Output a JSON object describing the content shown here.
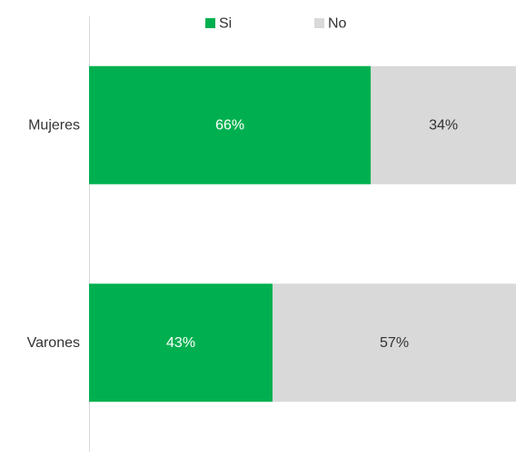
{
  "chart_data": {
    "type": "bar",
    "orientation": "horizontal",
    "stacked": "percent",
    "title": "",
    "xlabel": "",
    "ylabel": "",
    "xlim": [
      0,
      100
    ],
    "grid": false,
    "legend_position": "top",
    "categories": [
      "Mujeres",
      "Varones"
    ],
    "series": [
      {
        "name": "Si",
        "values": [
          66,
          43
        ],
        "labels": [
          "66%",
          "43%"
        ],
        "color": "#00B050",
        "label_color": "#ffffff"
      },
      {
        "name": "No",
        "values": [
          34,
          57
        ],
        "labels": [
          "34%",
          "57%"
        ],
        "color": "#D9D9D9",
        "label_color": "#333333"
      }
    ]
  }
}
